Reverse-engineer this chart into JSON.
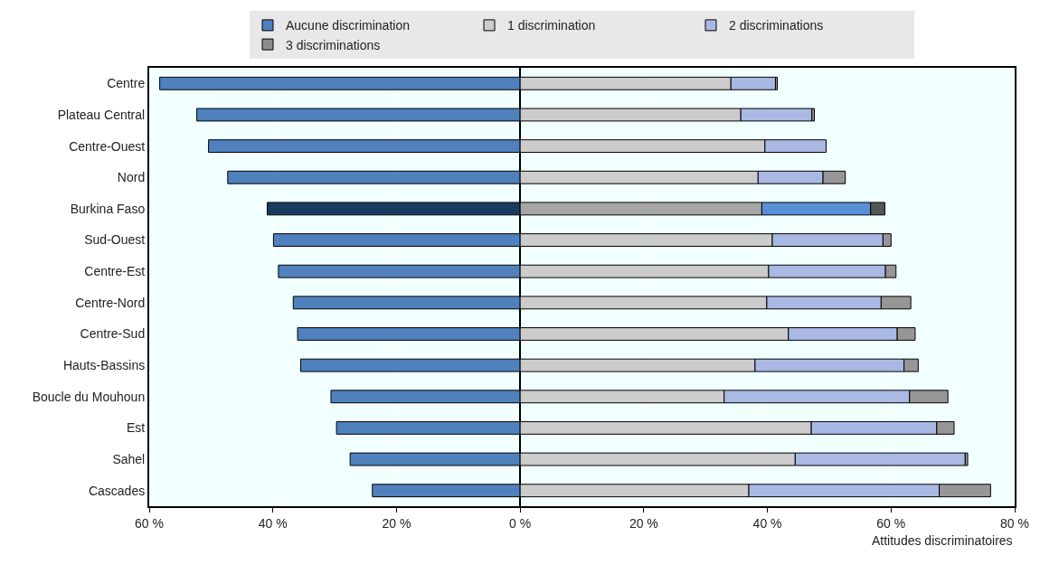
{
  "chart_data": {
    "type": "bar",
    "orientation": "horizontal",
    "stacked": true,
    "xlabel": "Attitudes discriminatoires",
    "categories": [
      "Centre",
      "Plateau Central",
      "Centre-Ouest",
      "Nord",
      "Burkina Faso",
      "Sud-Ouest",
      "Centre-Est",
      "Centre-Nord",
      "Centre-Sud",
      "Hauts-Bassins",
      "Boucle du Mouhoun",
      "Est",
      "Sahel",
      "Cascades"
    ],
    "series": [
      {
        "name": "Aucune discrimination",
        "color": "#4f81bd",
        "colors": [
          "#4f81bd",
          "#4f81bd",
          "#4f81bd",
          "#4f81bd",
          "#1a3a60",
          "#4f81bd",
          "#4f81bd",
          "#4f81bd",
          "#4f81bd",
          "#4f81bd",
          "#4f81bd",
          "#4f81bd",
          "#4f81bd",
          "#4f81bd"
        ],
        "values": [
          -58.3,
          -52.3,
          -50.4,
          -47.3,
          -40.9,
          -39.9,
          -39.1,
          -36.7,
          -36.0,
          -35.5,
          -30.6,
          -29.7,
          -27.5,
          -23.9
        ]
      },
      {
        "name": "1 discrimination",
        "color": "#cccccc",
        "colors": [
          "#cccccc",
          "#cccccc",
          "#cccccc",
          "#cccccc",
          "#a6a6a6",
          "#cccccc",
          "#cccccc",
          "#cccccc",
          "#cccccc",
          "#cccccc",
          "#cccccc",
          "#cccccc",
          "#cccccc",
          "#cccccc"
        ],
        "values": [
          34.1,
          35.7,
          39.6,
          38.5,
          39.1,
          40.8,
          40.2,
          39.9,
          43.4,
          38.0,
          33.0,
          47.1,
          44.5,
          37.0
        ]
      },
      {
        "name": "2 discriminations",
        "color": "#a9b9e4",
        "colors": [
          "#a9b9e4",
          "#a9b9e4",
          "#a9b9e4",
          "#a9b9e4",
          "#588fd6",
          "#a9b9e4",
          "#a9b9e4",
          "#a9b9e4",
          "#a9b9e4",
          "#a9b9e4",
          "#a9b9e4",
          "#a9b9e4",
          "#a9b9e4",
          "#a9b9e4"
        ],
        "values": [
          7.2,
          11.5,
          9.9,
          10.5,
          17.6,
          17.9,
          18.9,
          18.5,
          17.6,
          24.1,
          30.0,
          20.3,
          27.5,
          30.8
        ]
      },
      {
        "name": "3 discriminations",
        "color": "#8c8c8c",
        "colors": [
          "#969696",
          "#969696",
          "#969696",
          "#969696",
          "#555555",
          "#969696",
          "#969696",
          "#969696",
          "#969696",
          "#969696",
          "#969696",
          "#969696",
          "#969696",
          "#969696"
        ],
        "values": [
          0.3,
          0.4,
          null,
          3.6,
          2.3,
          1.3,
          1.7,
          4.8,
          2.9,
          2.3,
          6.2,
          2.8,
          0.4,
          8.3
        ]
      }
    ],
    "xlim": [
      -60,
      80
    ],
    "xticks": [
      {
        "value": -60,
        "label": "60 %"
      },
      {
        "value": -40,
        "label": "40 %"
      },
      {
        "value": -20,
        "label": "20 %"
      },
      {
        "value": 0,
        "label": "0 %"
      },
      {
        "value": 20,
        "label": "20 %"
      },
      {
        "value": 40,
        "label": "40 %"
      },
      {
        "value": 60,
        "label": "60 %"
      },
      {
        "value": 80,
        "label": "80 %"
      }
    ],
    "grid": "x",
    "legend": "top"
  }
}
